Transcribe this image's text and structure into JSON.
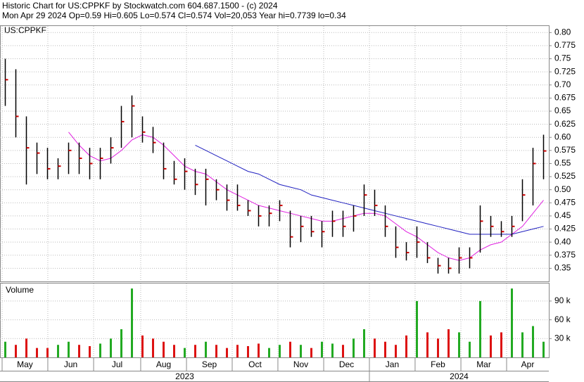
{
  "header": {
    "line1": "Historic Chart for US:CPPKF by Stockwatch.com 604.687.1500 - (c) 2024",
    "line2": "Mon Apr 29 2024  Op=0.59  Hi=0.605  Lo=0.574  Cl=0.574  Vol=20,053  Year hi=0.7739  lo=0.34"
  },
  "chart_data": [
    {
      "type": "ohlc",
      "label": "US:CPPKF",
      "x": [
        0.5,
        1.5,
        2.5,
        3.5,
        4.5,
        5.5,
        6.5,
        7.5,
        8.5,
        9.5,
        10.5,
        11.5,
        12.5,
        13.5,
        14.5,
        15.5,
        16.5,
        17.5,
        18.5,
        19.5,
        20.5,
        21.5,
        22.5,
        23.5,
        24.5,
        25.5,
        26.5,
        27.5,
        28.5,
        29.5,
        30.5,
        31.5,
        32.5,
        33.5,
        34.5,
        35.5,
        36.5,
        37.5,
        38.5,
        39.5,
        40.5,
        41.5,
        42.5,
        43.5,
        44.5,
        45.5,
        46.5,
        47.5,
        48.5,
        49.5,
        50.5,
        51.5
      ],
      "high": [
        0.75,
        0.73,
        0.64,
        0.59,
        0.58,
        0.56,
        0.59,
        0.59,
        0.58,
        0.58,
        0.6,
        0.66,
        0.68,
        0.64,
        0.62,
        0.59,
        0.555,
        0.56,
        0.54,
        0.54,
        0.52,
        0.51,
        0.51,
        0.48,
        0.47,
        0.47,
        0.48,
        0.46,
        0.45,
        0.45,
        0.44,
        0.46,
        0.46,
        0.47,
        0.51,
        0.5,
        0.47,
        0.43,
        0.4,
        0.43,
        0.4,
        0.37,
        0.37,
        0.39,
        0.39,
        0.47,
        0.45,
        0.44,
        0.45,
        0.52,
        0.58,
        0.605
      ],
      "low": [
        0.66,
        0.6,
        0.51,
        0.53,
        0.52,
        0.52,
        0.53,
        0.53,
        0.52,
        0.52,
        0.55,
        0.58,
        0.6,
        0.59,
        0.57,
        0.52,
        0.51,
        0.5,
        0.49,
        0.47,
        0.48,
        0.46,
        0.46,
        0.45,
        0.43,
        0.43,
        0.44,
        0.39,
        0.4,
        0.41,
        0.39,
        0.41,
        0.41,
        0.42,
        0.45,
        0.45,
        0.41,
        0.37,
        0.365,
        0.37,
        0.36,
        0.34,
        0.34,
        0.34,
        0.35,
        0.38,
        0.41,
        0.41,
        0.41,
        0.44,
        0.47,
        0.52
      ],
      "close": [
        0.71,
        0.64,
        0.58,
        0.57,
        0.54,
        0.545,
        0.575,
        0.56,
        0.55,
        0.56,
        0.58,
        0.63,
        0.66,
        0.61,
        0.59,
        0.54,
        0.52,
        0.535,
        0.51,
        0.52,
        0.5,
        0.48,
        0.47,
        0.46,
        0.45,
        0.455,
        0.47,
        0.41,
        0.43,
        0.42,
        0.42,
        0.44,
        0.43,
        0.45,
        0.49,
        0.47,
        0.43,
        0.39,
        0.38,
        0.4,
        0.37,
        0.355,
        0.35,
        0.37,
        0.37,
        0.44,
        0.43,
        0.42,
        0.43,
        0.49,
        0.55,
        0.574
      ],
      "bar_color": "#000000",
      "close_color": "#cc0000",
      "lines": [
        {
          "color": "#e020e0",
          "values": [
            null,
            null,
            null,
            null,
            null,
            null,
            0.61,
            0.585,
            0.565,
            0.555,
            0.56,
            0.575,
            0.595,
            0.605,
            0.6,
            0.585,
            0.565,
            0.545,
            0.535,
            0.53,
            0.515,
            0.5,
            0.49,
            0.48,
            0.47,
            0.465,
            0.46,
            0.455,
            0.45,
            0.445,
            0.44,
            0.44,
            0.445,
            0.45,
            0.455,
            0.455,
            0.45,
            0.435,
            0.42,
            0.41,
            0.395,
            0.38,
            0.37,
            0.365,
            0.37,
            0.385,
            0.395,
            0.4,
            0.415,
            0.43,
            0.455,
            0.48
          ]
        },
        {
          "color": "#2020c0",
          "values": [
            null,
            null,
            null,
            null,
            null,
            null,
            null,
            null,
            null,
            null,
            null,
            null,
            null,
            null,
            null,
            null,
            null,
            null,
            0.585,
            0.575,
            0.565,
            0.555,
            0.545,
            0.535,
            0.53,
            0.52,
            0.51,
            0.505,
            0.5,
            0.49,
            0.485,
            0.48,
            0.475,
            0.47,
            0.465,
            0.46,
            0.455,
            0.45,
            0.445,
            0.44,
            0.435,
            0.43,
            0.425,
            0.42,
            0.415,
            0.415,
            0.415,
            0.415,
            0.415,
            0.42,
            0.425,
            0.43
          ]
        }
      ],
      "xlim": [
        0,
        52
      ],
      "ylim": [
        0.325,
        0.8125
      ],
      "yticks": [
        0.35,
        0.375,
        {
          "value": 0.4,
          "label": "0.40"
        },
        0.425,
        0.45,
        0.475,
        {
          "value": 0.5,
          "label": "0.50"
        },
        0.525,
        0.55,
        0.575,
        {
          "value": 0.6,
          "label": "0.60"
        },
        0.625,
        0.65,
        0.675,
        {
          "value": 0.7,
          "label": "0.70"
        },
        0.725,
        0.75,
        0.775,
        {
          "value": 0.8,
          "label": "0.80"
        }
      ],
      "xticks": [
        {
          "value": 0.2,
          "label": "May"
        },
        {
          "value": 4.53,
          "label": "Jun"
        },
        {
          "value": 8.87,
          "label": "Jul"
        },
        {
          "value": 13.33,
          "label": "Aug"
        },
        {
          "value": 17.67,
          "label": "Sep"
        },
        {
          "value": 22,
          "label": "Oct"
        },
        {
          "value": 26.33,
          "label": "Nov"
        },
        {
          "value": 30.67,
          "label": "Dec"
        },
        {
          "value": 35,
          "label": "Jan"
        },
        {
          "value": 39.33,
          "label": "Feb"
        },
        {
          "value": 43.67,
          "label": "Mar"
        },
        {
          "value": 48,
          "label": "Apr"
        }
      ],
      "years": [
        {
          "value": 0,
          "label": "2023"
        },
        {
          "value": 35,
          "label": "2024"
        }
      ],
      "grid": true
    },
    {
      "type": "bar",
      "label": "Volume",
      "x": [
        0.5,
        1.5,
        2.5,
        3.5,
        4.5,
        5.5,
        6.5,
        7.5,
        8.5,
        9.5,
        10.5,
        11.5,
        12.5,
        13.5,
        14.5,
        15.5,
        16.5,
        17.5,
        18.5,
        19.5,
        20.5,
        21.5,
        22.5,
        23.5,
        24.5,
        25.5,
        26.5,
        27.5,
        28.5,
        29.5,
        30.5,
        31.5,
        32.5,
        33.5,
        34.5,
        35.5,
        36.5,
        37.5,
        38.5,
        39.5,
        40.5,
        41.5,
        42.5,
        43.5,
        44.5,
        45.5,
        46.5,
        47.5,
        48.5,
        49.5,
        50.5,
        51.5
      ],
      "values": [
        25000,
        20000,
        30000,
        15000,
        15000,
        20000,
        25000,
        20000,
        18000,
        22000,
        30000,
        45000,
        110000,
        35000,
        30000,
        25000,
        20000,
        15000,
        20000,
        25000,
        20000,
        15000,
        20000,
        18000,
        22000,
        15000,
        20000,
        25000,
        20000,
        15000,
        25000,
        22000,
        20000,
        30000,
        45000,
        30000,
        25000,
        20000,
        35000,
        90000,
        40000,
        30000,
        45000,
        40000,
        25000,
        90000,
        35000,
        40000,
        110000,
        40000,
        50000,
        25000
      ],
      "up_color": "#22aa22",
      "down_color": "#dd1111",
      "xlim": [
        0,
        52
      ],
      "ylim": [
        0,
        118000
      ],
      "yticks": [
        {
          "value": 30000,
          "label": "30 k"
        },
        {
          "value": 60000,
          "label": "60 k"
        },
        {
          "value": 90000,
          "label": "90 k"
        }
      ],
      "grid": true
    }
  ]
}
